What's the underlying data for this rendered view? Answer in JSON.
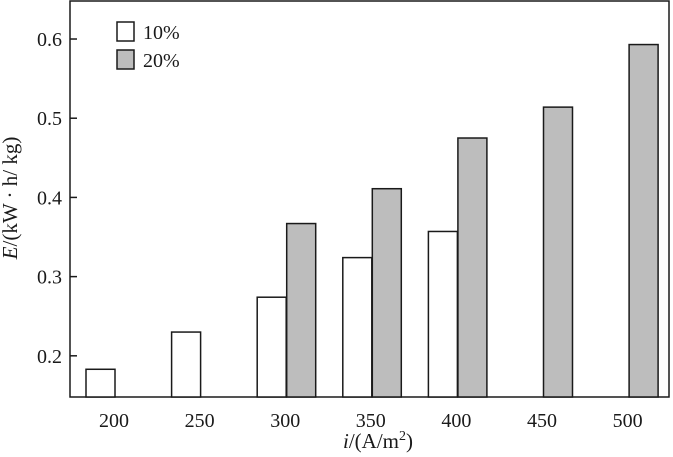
{
  "chart_data": {
    "type": "bar",
    "categories": [
      "200",
      "250",
      "300",
      "350",
      "400",
      "450",
      "500"
    ],
    "series": [
      {
        "name": "10%",
        "values": [
          0.183,
          0.23,
          0.274,
          0.324,
          0.357,
          null,
          null
        ]
      },
      {
        "name": "20%",
        "values": [
          null,
          null,
          0.367,
          0.411,
          0.475,
          0.514,
          0.593
        ]
      }
    ],
    "colors": {
      "10%": "#ffffff",
      "20%": "#bdbdbd",
      "stroke": "#1a1a1a"
    },
    "y_ticks": [
      "0.2",
      "0.3",
      "0.4",
      "0.5",
      "0.6"
    ],
    "ylim": [
      0.148,
      0.648
    ],
    "xlabel_italic": "i",
    "xlabel_rest": "/(A/m",
    "xlabel_sup": "2",
    "xlabel_close": ")",
    "ylabel_italic": "E",
    "ylabel_rest": "/(kW · h/ kg)",
    "legend_placement": "top-left",
    "grid": false
  }
}
